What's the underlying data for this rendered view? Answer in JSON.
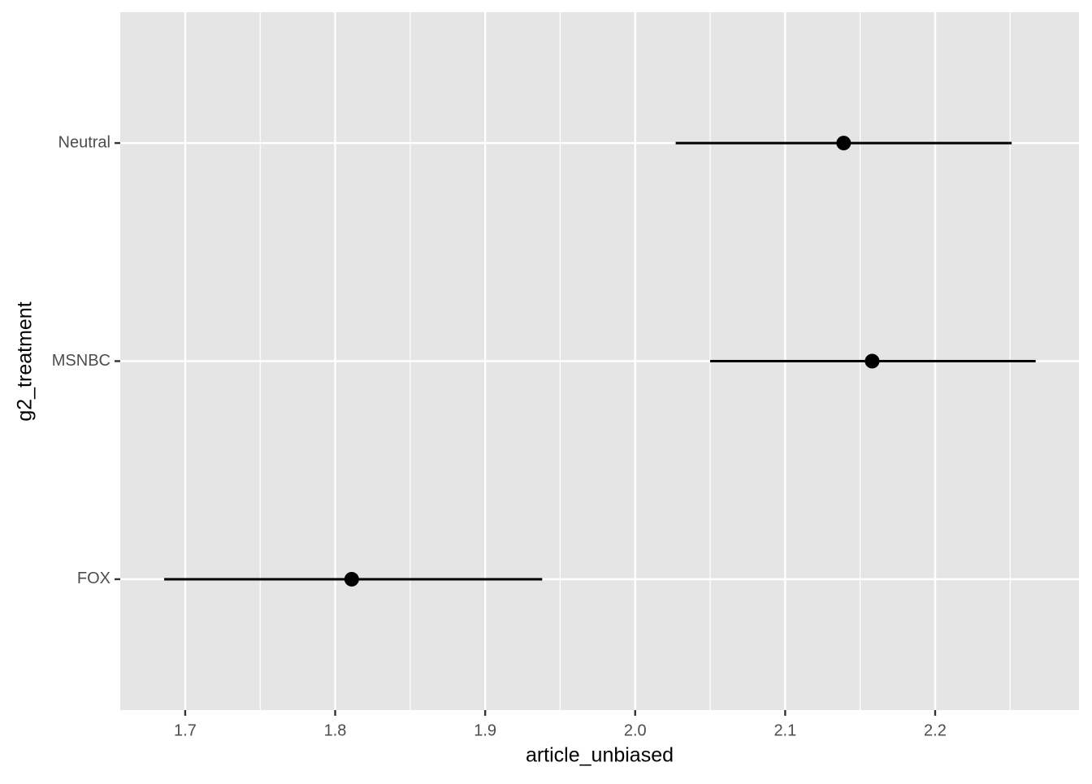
{
  "chart_data": {
    "type": "pointrange",
    "x_label": "article_unbiased",
    "y_label": "g2_treatment",
    "categories": [
      "FOX",
      "MSNBC",
      "Neutral"
    ],
    "values": [
      1.811,
      2.158,
      2.139
    ],
    "lower": [
      1.686,
      2.05,
      2.027
    ],
    "upper": [
      1.938,
      2.267,
      2.251
    ],
    "color": "#000000",
    "xlim": [
      1.6567,
      2.2959
    ],
    "xticks": [
      1.7,
      1.8,
      1.9,
      {
        "value": 2,
        "label": "2.0"
      },
      2.1,
      2.2
    ],
    "x_minor_ticks": [
      1.75,
      1.85,
      1.95,
      2.05,
      2.15,
      2.25
    ],
    "grid": true
  }
}
